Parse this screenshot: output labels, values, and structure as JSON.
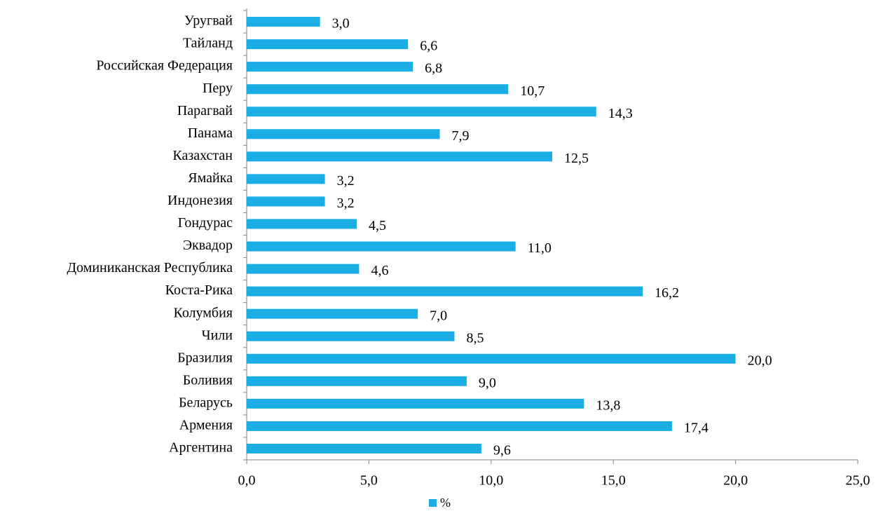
{
  "chart_data": {
    "type": "barh",
    "categories": [
      "Уругвай",
      "Тайланд",
      "Российская Федерация",
      "Перу",
      "Парагвай",
      "Панама",
      "Казахстан",
      "Ямайка",
      "Индонезия",
      "Гондурас",
      "Эквадор",
      "Доминиканская Республика",
      "Коста-Рика",
      "Колумбия",
      "Чили",
      "Бразилия",
      "Боливия",
      "Беларусь",
      "Армения",
      "Аргентина"
    ],
    "series": [
      {
        "name": "%",
        "color": "#1aaee5",
        "values": [
          3.0,
          6.6,
          6.8,
          10.7,
          14.3,
          7.9,
          12.5,
          3.2,
          3.2,
          4.5,
          11.0,
          4.6,
          16.2,
          7.0,
          8.5,
          20.0,
          9.0,
          13.8,
          17.4,
          9.6
        ],
        "value_labels": [
          "3,0",
          "6,6",
          "6,8",
          "10,7",
          "14,3",
          "7,9",
          "12,5",
          "3,2",
          "3,2",
          "4,5",
          "11,0",
          "4,6",
          "16,2",
          "7,0",
          "8,5",
          "20,0",
          "9,0",
          "13,8",
          "17,4",
          "9,6"
        ]
      }
    ],
    "xlim": [
      0,
      25
    ],
    "xticks": [
      {
        "value": 0,
        "label": "0,0"
      },
      {
        "value": 5,
        "label": "5,0"
      },
      {
        "value": 10,
        "label": "10,0"
      },
      {
        "value": 15,
        "label": "15,0"
      },
      {
        "value": 20,
        "label": "20,0"
      },
      {
        "value": 25,
        "label": "25,0"
      }
    ],
    "legend": "bottom"
  }
}
